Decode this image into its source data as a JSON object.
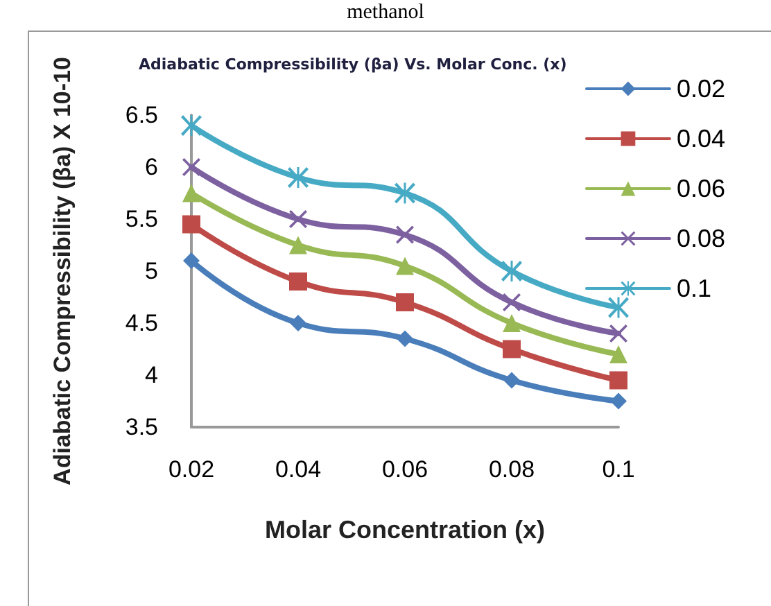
{
  "chart_data": {
    "type": "line",
    "title": "Adiabatic Compressibility (βa) Vs. Molar Conc. (x)",
    "annotations": [
      "methanol"
    ],
    "xlabel": "Molar Concentration (x)",
    "ylabel": "Adiabatic Compressibility (βa) X 10-10",
    "categories": [
      "0.02",
      "0.04",
      "0.06",
      "0.08",
      "0.1"
    ],
    "series": [
      {
        "name": "0.02",
        "color": "#4a7ebb",
        "marker": "diamond",
        "values": [
          5.1,
          4.5,
          4.35,
          3.95,
          3.75
        ]
      },
      {
        "name": "0.04",
        "color": "#be4b48",
        "marker": "square",
        "values": [
          5.45,
          4.9,
          4.7,
          4.25,
          3.95
        ]
      },
      {
        "name": "0.06",
        "color": "#98b954",
        "marker": "triangle",
        "values": [
          5.75,
          5.25,
          5.05,
          4.5,
          4.2
        ]
      },
      {
        "name": "0.08",
        "color": "#7d60a0",
        "marker": "cross",
        "values": [
          6.0,
          5.5,
          5.35,
          4.7,
          4.4
        ]
      },
      {
        "name": "0.1",
        "color": "#46aac5",
        "marker": "star",
        "values": [
          6.4,
          5.9,
          5.75,
          5.0,
          4.65
        ]
      }
    ],
    "ylim": [
      3.5,
      6.5
    ],
    "yticks": [
      3.5,
      4,
      4.5,
      5,
      5.5,
      6,
      6.5
    ],
    "grid": false,
    "legend": "top right",
    "line_style": "solid"
  }
}
